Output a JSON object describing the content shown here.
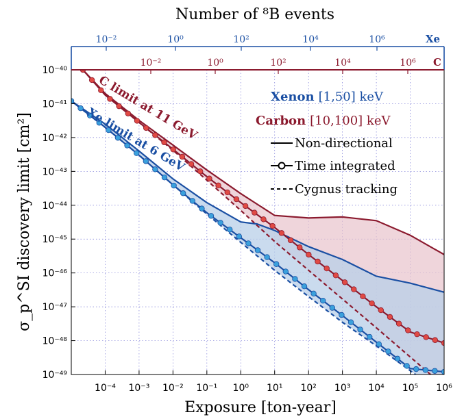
{
  "chart_data": {
    "type": "line",
    "xlabel": "Exposure [ton-year]",
    "ylabel": "σ_p^SI discovery limit [cm²]",
    "top_axis_title": "Number of ⁸B events",
    "xscale": "log",
    "yscale": "log",
    "xlim": [
      1e-05,
      1000000.0
    ],
    "ylim": [
      1e-49,
      1e-40
    ],
    "x_ticks": [
      "10⁻⁴",
      "10⁻³",
      "10⁻²",
      "10⁻¹",
      "10⁰",
      "10¹",
      "10²",
      "10³",
      "10⁴",
      "10⁵",
      "10⁶"
    ],
    "y_ticks": [
      "10⁻⁴⁹",
      "10⁻⁴⁸",
      "10⁻⁴⁷",
      "10⁻⁴⁶",
      "10⁻⁴⁵",
      "10⁻⁴⁴",
      "10⁻⁴³",
      "10⁻⁴²",
      "10⁻⁴¹",
      "10⁻⁴⁰"
    ],
    "top_axis_xe": {
      "label": "Xe",
      "ticks": [
        "10⁻²",
        "10⁰",
        "10²",
        "10⁴",
        "10⁶"
      ]
    },
    "top_axis_c": {
      "label": "C",
      "ticks": [
        "10⁻²",
        "10⁰",
        "10²",
        "10⁴",
        "10⁶"
      ]
    },
    "grid": true,
    "annotations": [
      "C limit at 11 GeV",
      "Xe limit at 6 GeV"
    ],
    "legend": {
      "position": "top-right",
      "xenon": {
        "name": "Xenon",
        "range": "[1,50] keV"
      },
      "carbon": {
        "name": "Carbon",
        "range": "[10,100] keV"
      },
      "styles": [
        "Non-directional",
        "Time integrated",
        "Cygnus tracking"
      ]
    },
    "colors": {
      "xenon": "#1a4fa3",
      "xenon_fill": "#b8cfe8",
      "xenon_dot": "#3ba0dc",
      "carbon": "#8b1a2e",
      "carbon_fill": "#e8c3cc",
      "carbon_dot": "#e04a44"
    },
    "series": [
      {
        "target": "Xe",
        "style": "Non-directional",
        "x": [
          1e-05,
          0.0001,
          0.001,
          0.01,
          0.1,
          1,
          3,
          10,
          100,
          1000.0,
          10000.0,
          100000.0,
          1000000.0
        ],
        "y": [
          1.2e-41,
          2.5e-42,
          4e-43,
          6e-44,
          1.2e-44,
          3.2e-45,
          2.8e-45,
          1.8e-45,
          6e-46,
          2.5e-46,
          8e-47,
          5e-47,
          2.7e-47
        ]
      },
      {
        "target": "Xe",
        "style": "Time integrated",
        "x": [
          1e-05,
          0.0001,
          0.001,
          0.01,
          0.1,
          1,
          10,
          100,
          1000.0,
          10000.0,
          100000.0,
          1000000.0
        ],
        "y": [
          1.2e-41,
          2e-42,
          3e-43,
          4e-44,
          6e-45,
          1.1e-45,
          2e-46,
          3.2e-47,
          5.5e-48,
          9e-49,
          1.5e-49,
          1.2e-49
        ]
      },
      {
        "target": "Xe",
        "style": "Cygnus tracking",
        "x": [
          1e-05,
          0.0001,
          0.001,
          0.01,
          0.1,
          1,
          10,
          100,
          1000.0,
          10000.0,
          100000.0,
          1000000.0
        ],
        "y": [
          1.2e-41,
          2e-42,
          3e-43,
          4e-44,
          5.5e-45,
          8e-46,
          1.2e-46,
          2e-47,
          3.5e-48,
          7e-49,
          1.3e-49,
          2.5e-50
        ]
      },
      {
        "target": "C",
        "style": "Non-directional",
        "x": [
          2.2e-05,
          0.0001,
          0.001,
          0.01,
          0.1,
          1,
          10,
          100,
          1000.0,
          10000.0,
          100000.0,
          1000000.0
        ],
        "y": [
          1e-40,
          2e-41,
          3.2e-42,
          6e-43,
          1.1e-43,
          2.2e-44,
          5e-45,
          4.2e-45,
          4.5e-45,
          3.5e-45,
          1.3e-45,
          3.5e-46
        ]
      },
      {
        "target": "C",
        "style": "Time integrated",
        "x": [
          2.2e-05,
          0.0001,
          0.001,
          0.01,
          0.1,
          1,
          10,
          100,
          1000.0,
          10000.0,
          100000.0,
          1000000.0
        ],
        "y": [
          1e-40,
          1.8e-41,
          2.8e-42,
          4.5e-43,
          7e-44,
          1.2e-44,
          2.2e-45,
          3.5e-46,
          6e-47,
          1e-47,
          1.8e-48,
          8.5e-49
        ]
      },
      {
        "target": "C",
        "style": "Cygnus tracking",
        "x": [
          2.2e-05,
          0.0001,
          0.001,
          0.01,
          0.1,
          1,
          10,
          100,
          1000.0,
          10000.0,
          100000.0,
          1000000.0
        ],
        "y": [
          1e-40,
          1.8e-41,
          2.8e-42,
          4.2e-43,
          5.5e-44,
          7e-45,
          8.5e-46,
          1.2e-46,
          1.7e-47,
          2.4e-48,
          3.3e-49,
          4.5e-50
        ]
      }
    ]
  }
}
